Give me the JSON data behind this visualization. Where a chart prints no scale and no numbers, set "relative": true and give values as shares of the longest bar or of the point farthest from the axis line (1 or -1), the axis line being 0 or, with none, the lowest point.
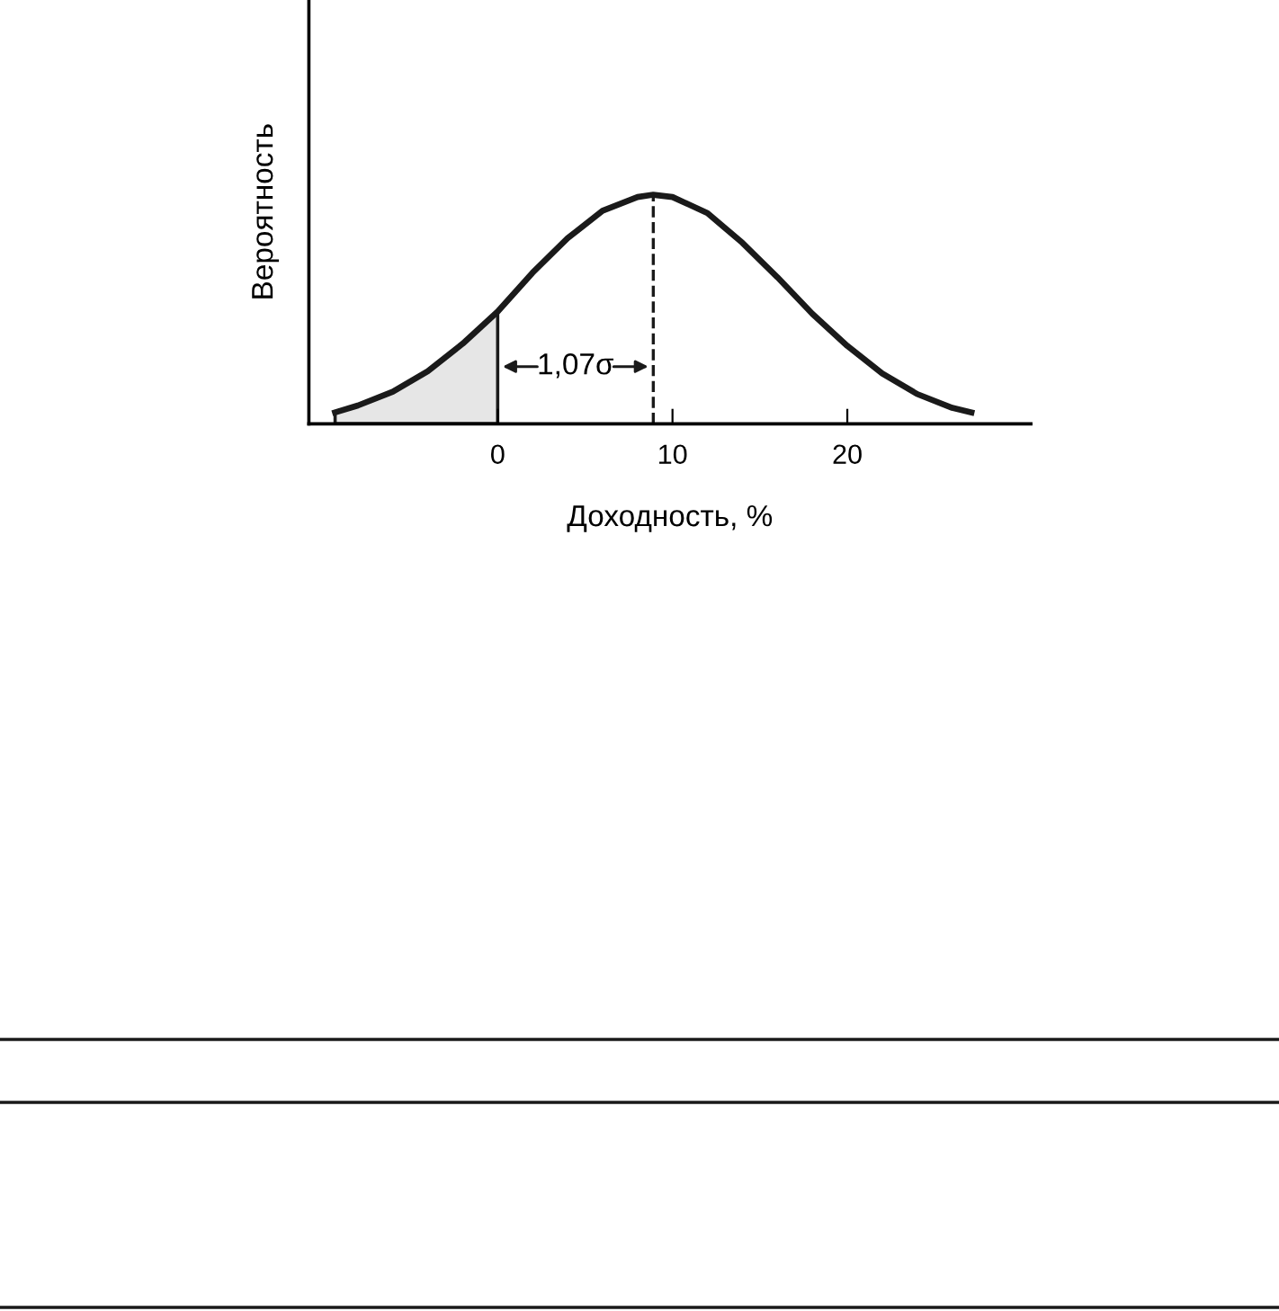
{
  "chart_data": {
    "type": "line",
    "relative": true,
    "xlabel": "Доходность, %",
    "ylabel": "Вероятность",
    "xlim": [
      -10.8,
      30.5
    ],
    "xticks": [
      0,
      10,
      20
    ],
    "tick_labels": "x",
    "grid": false,
    "legend": false,
    "marker": "none",
    "line_style": "solid",
    "series": [
      {
        "color": "#1a1a1a",
        "x": [
          -9.3,
          -8,
          -6,
          -4,
          -2,
          0,
          2,
          4,
          6,
          8,
          8.9,
          10,
          12,
          14,
          16,
          18,
          20,
          22,
          24,
          26,
          27.1
        ],
        "values": [
          0.05,
          0.08,
          0.14,
          0.23,
          0.35,
          0.49,
          0.66,
          0.81,
          0.93,
          0.99,
          1,
          0.99,
          0.92,
          0.79,
          0.64,
          0.48,
          0.34,
          0.22,
          0.13,
          0.07,
          0.05
        ]
      },
      {
        "type": "area",
        "color": "#e6e6e6",
        "x": [
          -9.3,
          -8,
          -6,
          -4,
          -2,
          0
        ],
        "values": [
          0.05,
          0.08,
          0.14,
          0.23,
          0.35,
          0.49
        ]
      }
    ],
    "ref_lines": [
      {
        "axis": "x",
        "value": 8.9,
        "color": "#1a1a1a",
        "line_style": "dashed"
      }
    ],
    "annotations": [
      "1,07σ"
    ]
  }
}
